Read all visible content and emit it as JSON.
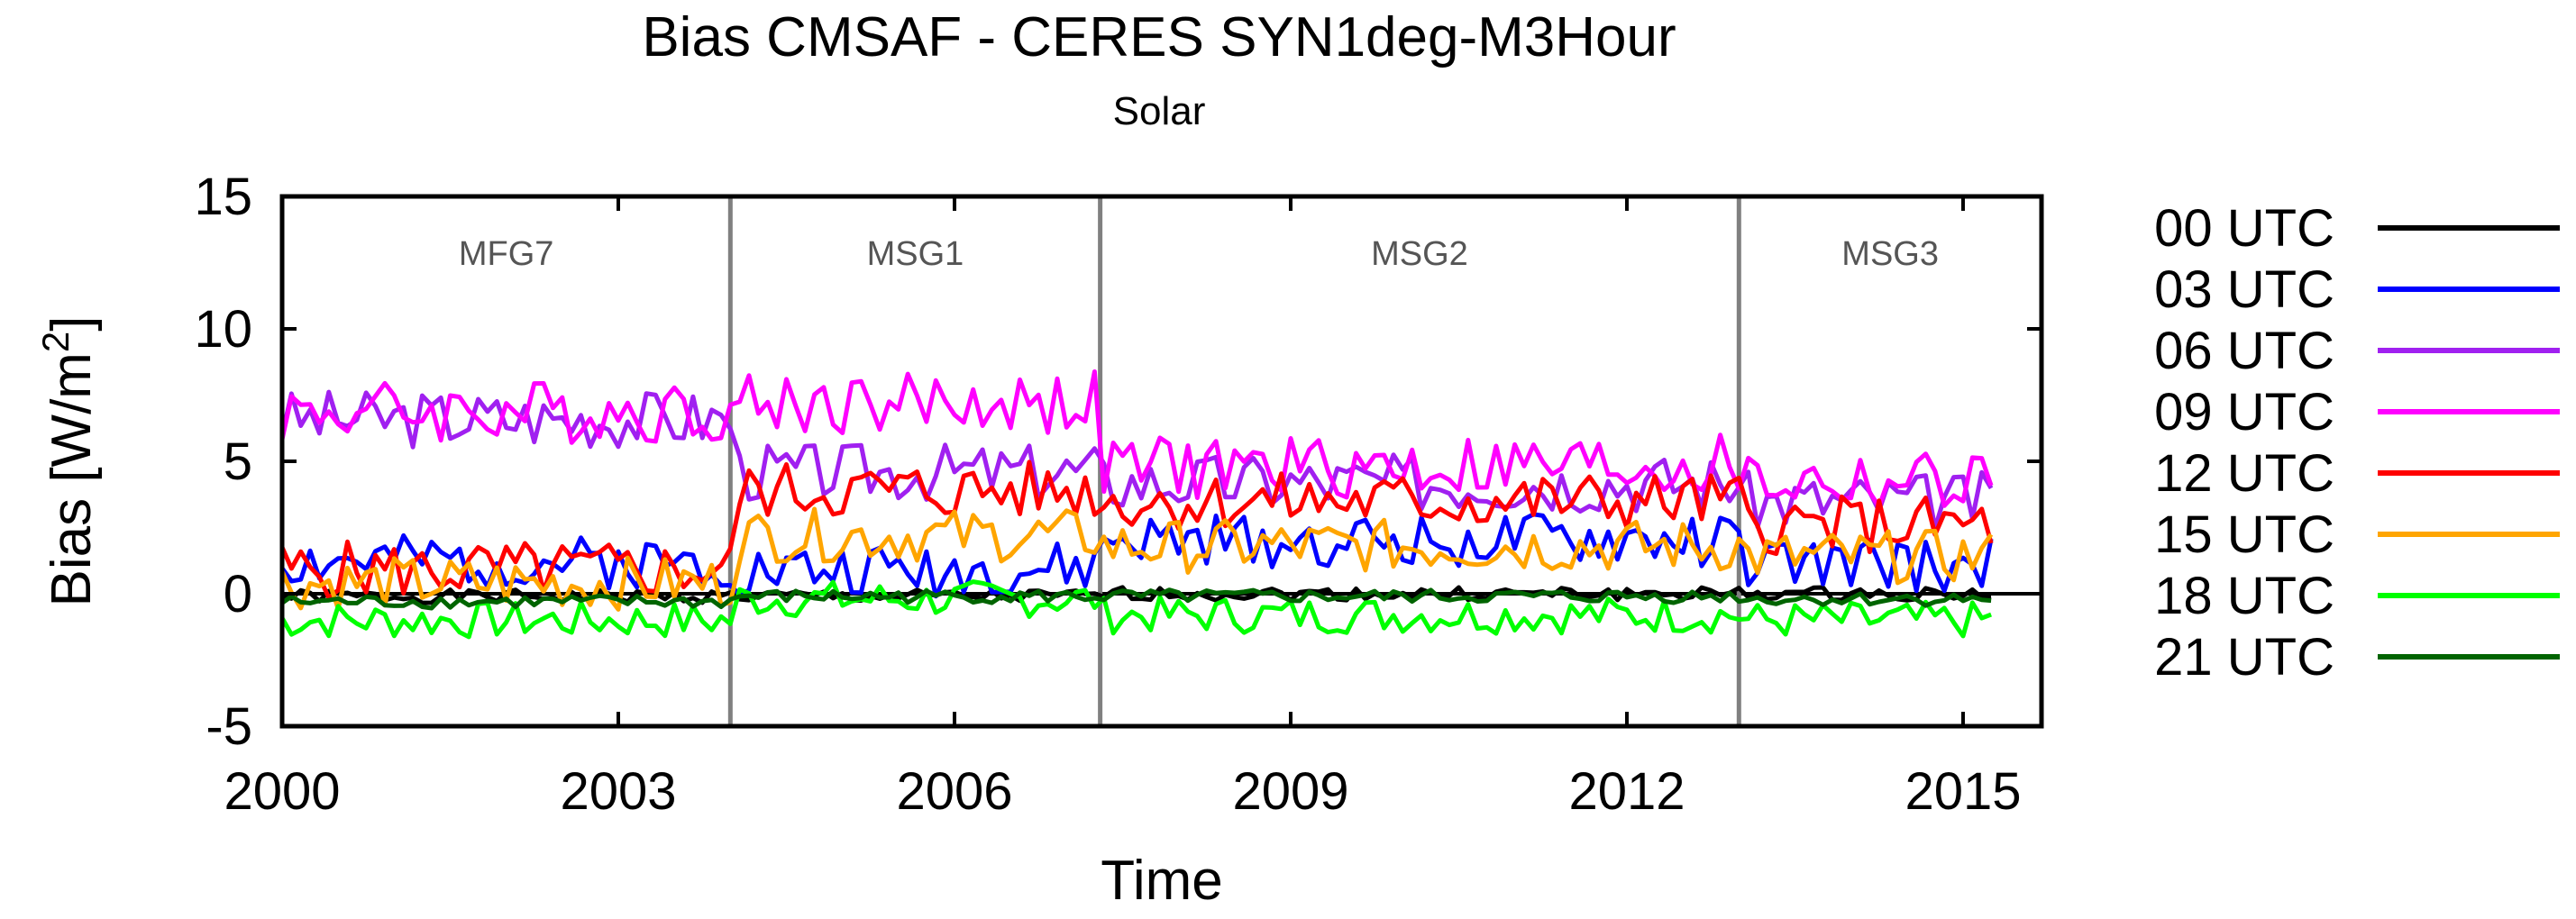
{
  "chart_data": {
    "type": "line",
    "title": "Bias CMSAF - CERES SYN1deg-M3Hour",
    "subtitle": "Solar",
    "xlabel": "Time",
    "ylabel": "Bias [W/m",
    "ylabel_sup": "2",
    "ylabel_close": "]",
    "xlim": [
      2000,
      2015.7
    ],
    "ylim": [
      -5,
      15
    ],
    "xticks": [
      2000,
      2003,
      2006,
      2009,
      2012,
      2015
    ],
    "yticks": [
      -5,
      0,
      5,
      10,
      15
    ],
    "xtick_labels": [
      "2000",
      "2003",
      "2006",
      "2009",
      "2012",
      "2015"
    ],
    "ytick_labels": [
      "-5",
      "0",
      "5",
      "10",
      "15"
    ],
    "periods": [
      {
        "name": "MFG7",
        "start": 2000.0,
        "end": 2004.0
      },
      {
        "name": "MSG1",
        "start": 2004.0,
        "end": 2007.3
      },
      {
        "name": "MSG2",
        "start": 2007.3,
        "end": 2013.0
      },
      {
        "name": "MSG3",
        "start": 2013.0,
        "end": 2015.7
      }
    ],
    "legend_position": "outside-right",
    "series": [
      {
        "name": "00 UTC",
        "color": "#000000",
        "base": [
          -0.1,
          -0.1,
          0.0,
          0.0
        ],
        "amp": 0.25,
        "seed": 1,
        "start": 2000.0,
        "end": 2015.3
      },
      {
        "name": "03 UTC",
        "color": "#0000ff",
        "base": [
          1.2,
          0.9,
          2.0,
          1.1
        ],
        "amp": 1.0,
        "seed": 2,
        "start": 2000.0,
        "end": 2015.3
      },
      {
        "name": "06 UTC",
        "color": "#a020f0",
        "base": [
          6.6,
          4.6,
          4.2,
          3.5
        ],
        "amp": 1.1,
        "seed": 3,
        "start": 2000.0,
        "end": 2015.3
      },
      {
        "name": "09 UTC",
        "color": "#ff00ff",
        "base": [
          6.9,
          7.2,
          4.8,
          4.2
        ],
        "amp": 1.2,
        "seed": 4,
        "start": 2000.0,
        "end": 2015.3
      },
      {
        "name": "12 UTC",
        "color": "#ff0000",
        "base": [
          0.9,
          3.9,
          3.5,
          2.6
        ],
        "amp": 1.1,
        "seed": 5,
        "start": 2000.0,
        "end": 2015.3
      },
      {
        "name": "15 UTC",
        "color": "#ffa500",
        "base": [
          0.4,
          2.2,
          1.8,
          1.4
        ],
        "amp": 1.0,
        "seed": 6,
        "start": 2000.0,
        "end": 2015.3
      },
      {
        "name": "18 UTC",
        "color": "#00ff00",
        "base": [
          -1.0,
          -0.2,
          -0.8,
          -1.0
        ],
        "amp": 0.7,
        "seed": 7,
        "start": 2000.0,
        "end": 2015.3
      },
      {
        "name": "21 UTC",
        "color": "#006400",
        "base": [
          -0.3,
          -0.1,
          -0.1,
          -0.2
        ],
        "amp": 0.25,
        "seed": 8,
        "start": 2000.0,
        "end": 2015.3
      }
    ]
  }
}
